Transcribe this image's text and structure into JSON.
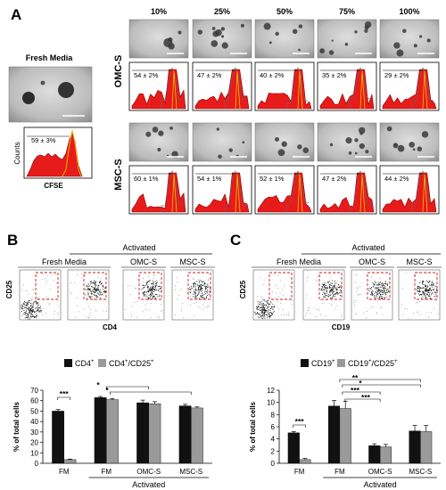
{
  "panel_a": {
    "label": "A",
    "fresh_media_title": "Fresh Media",
    "fresh_media_value": "59 ± 3%",
    "counts_label": "Counts",
    "cfse_label": "CFSE",
    "concentrations": [
      "10%",
      "25%",
      "50%",
      "75%",
      "100%"
    ],
    "rows": [
      {
        "label": "OMC-S",
        "values": [
          "54 ± 2%",
          "47 ± 2%",
          "40 ± 2%",
          "35 ± 2%",
          "29 ± 2%"
        ]
      },
      {
        "label": "MSC-S",
        "values": [
          "60 ± 1%",
          "54 ± 1%",
          "52 ± 1%",
          "47 ± 2%",
          "44 ± 2%"
        ]
      }
    ]
  },
  "panel_b": {
    "label": "B",
    "activated_label": "Activated",
    "groups": [
      "Fresh Media",
      "OMC-S",
      "MSC-S"
    ],
    "y_axis_label": "CD25",
    "x_axis_label": "CD4",
    "legend": [
      "CD4",
      "CD4",
      "/CD25"
    ],
    "legend_sup": [
      "+",
      "+",
      "+"
    ]
  },
  "panel_c": {
    "label": "C",
    "activated_label": "Activated",
    "groups": [
      "Fresh Media",
      "OMC-S",
      "MSC-S"
    ],
    "y_axis_label": "CD25",
    "x_axis_label": "CD19",
    "legend": [
      "CD19",
      "CD19",
      "/CD25"
    ],
    "legend_sup": [
      "+",
      "+",
      "+"
    ]
  },
  "chart_data": [
    {
      "type": "bar",
      "categories": [
        "FM",
        "FM",
        "OMC-S",
        "MSC-S"
      ],
      "group_label": "Activated",
      "series": [
        {
          "name": "CD4+",
          "values": [
            50,
            63,
            58,
            55
          ],
          "errors": [
            1.5,
            1,
            2.5,
            1.5
          ],
          "color": "#111111"
        },
        {
          "name": "CD4+/CD25+",
          "values": [
            3.5,
            61,
            57,
            53
          ],
          "errors": [
            0.5,
            1,
            2,
            1
          ],
          "color": "#9a9a9a"
        }
      ],
      "ylabel": "% of total cells",
      "ylim": [
        0,
        70
      ],
      "yticks": [
        "0",
        "10",
        "20",
        "30",
        "40",
        "50",
        "60",
        "70"
      ],
      "significance": [
        "***",
        "*",
        "*"
      ]
    },
    {
      "type": "bar",
      "categories": [
        "FM",
        "FM",
        "OMC-S",
        "MSC-S"
      ],
      "group_label": "Activated",
      "series": [
        {
          "name": "CD19+",
          "values": [
            5,
            9.4,
            2.9,
            5.3
          ],
          "errors": [
            0.2,
            0.9,
            0.3,
            0.9
          ],
          "color": "#111111"
        },
        {
          "name": "CD19+/CD25+",
          "values": [
            0.6,
            9.0,
            2.7,
            5.2
          ],
          "errors": [
            0.2,
            1.2,
            0.4,
            1.0
          ],
          "color": "#9a9a9a"
        }
      ],
      "ylabel": "% of total cells",
      "ylim": [
        0,
        12
      ],
      "yticks": [
        "0",
        "2",
        "4",
        "6",
        "8",
        "10",
        "12"
      ],
      "significance": [
        "***",
        "**",
        "*",
        "***",
        "***"
      ]
    }
  ]
}
